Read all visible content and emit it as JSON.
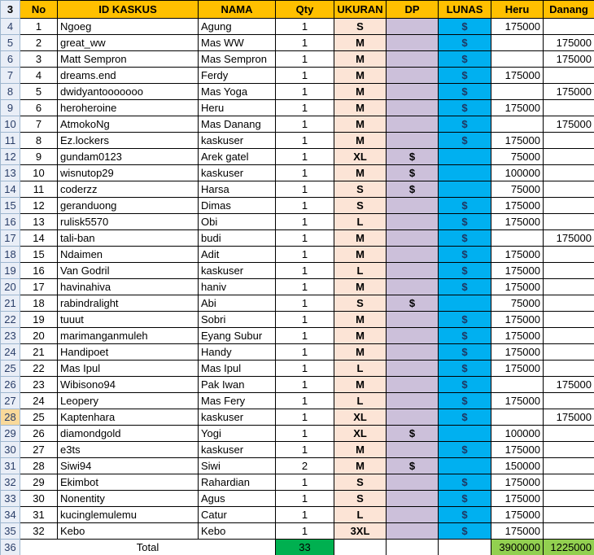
{
  "header_row_number": "3",
  "headers": [
    "No",
    "ID KASKUS",
    "NAMA",
    "Qty",
    "UKURAN",
    "DP",
    "LUNAS",
    "Heru",
    "Danang"
  ],
  "selected_row": "28",
  "dollar": "$",
  "rows": [
    [
      "4",
      "1",
      "Ngoeg",
      "Agung",
      "1",
      "S",
      "",
      "$",
      "175000",
      ""
    ],
    [
      "5",
      "2",
      "great_ww",
      "Mas WW",
      "1",
      "M",
      "",
      "$",
      "",
      "175000"
    ],
    [
      "6",
      "3",
      "Matt Sempron",
      "Mas Sempron",
      "1",
      "M",
      "",
      "$",
      "",
      "175000"
    ],
    [
      "7",
      "4",
      "dreams.end",
      "Ferdy",
      "1",
      "M",
      "",
      "$",
      "175000",
      ""
    ],
    [
      "8",
      "5",
      "dwidyantooooooo",
      "Mas Yoga",
      "1",
      "M",
      "",
      "$",
      "",
      "175000"
    ],
    [
      "9",
      "6",
      "heroheroine",
      "Heru",
      "1",
      "M",
      "",
      "$",
      "175000",
      ""
    ],
    [
      "10",
      "7",
      "AtmokoNg",
      "Mas Danang",
      "1",
      "M",
      "",
      "$",
      "",
      "175000"
    ],
    [
      "11",
      "8",
      "Ez.lockers",
      "kaskuser",
      "1",
      "M",
      "",
      "$",
      "175000",
      ""
    ],
    [
      "12",
      "9",
      "gundam0123",
      "Arek gatel",
      "1",
      "XL",
      "$",
      "",
      "75000",
      ""
    ],
    [
      "13",
      "10",
      "wisnutop29",
      "kaskuser",
      "1",
      "M",
      "$",
      "",
      "100000",
      ""
    ],
    [
      "14",
      "11",
      "coderzz",
      "Harsa",
      "1",
      "S",
      "$",
      "",
      "75000",
      ""
    ],
    [
      "15",
      "12",
      "geranduong",
      "Dimas",
      "1",
      "S",
      "",
      "$",
      "175000",
      ""
    ],
    [
      "16",
      "13",
      "rulisk5570",
      "Obi",
      "1",
      "L",
      "",
      "$",
      "175000",
      ""
    ],
    [
      "17",
      "14",
      "tali-ban",
      "budi",
      "1",
      "M",
      "",
      "$",
      "",
      "175000"
    ],
    [
      "18",
      "15",
      "Ndaimen",
      "Adit",
      "1",
      "M",
      "",
      "$",
      "175000",
      ""
    ],
    [
      "19",
      "16",
      "Van Godril",
      "kaskuser",
      "1",
      "L",
      "",
      "$",
      "175000",
      ""
    ],
    [
      "20",
      "17",
      "havinahiva",
      "haniv",
      "1",
      "M",
      "",
      "$",
      "175000",
      ""
    ],
    [
      "21",
      "18",
      "rabindralight",
      "Abi",
      "1",
      "S",
      "$",
      "",
      "75000",
      ""
    ],
    [
      "22",
      "19",
      "tuuut",
      "Sobri",
      "1",
      "M",
      "",
      "$",
      "175000",
      ""
    ],
    [
      "23",
      "20",
      "marimanganmuleh",
      "Eyang Subur",
      "1",
      "M",
      "",
      "$",
      "175000",
      ""
    ],
    [
      "24",
      "21",
      "Handipoet",
      "Handy",
      "1",
      "M",
      "",
      "$",
      "175000",
      ""
    ],
    [
      "25",
      "22",
      "Mas Ipul",
      "Mas Ipul",
      "1",
      "L",
      "",
      "$",
      "175000",
      ""
    ],
    [
      "26",
      "23",
      "Wibisono94",
      "Pak Iwan",
      "1",
      "M",
      "",
      "$",
      "",
      "175000"
    ],
    [
      "27",
      "24",
      "Leopery",
      "Mas Fery",
      "1",
      "L",
      "",
      "$",
      "175000",
      ""
    ],
    [
      "28",
      "25",
      "Kaptenhara",
      "kaskuser",
      "1",
      "XL",
      "",
      "$",
      "",
      "175000"
    ],
    [
      "29",
      "26",
      "diamondgold",
      "Yogi",
      "1",
      "XL",
      "$",
      "",
      "100000",
      ""
    ],
    [
      "30",
      "27",
      "e3ts",
      "kaskuser",
      "1",
      "M",
      "",
      "$",
      "175000",
      ""
    ],
    [
      "31",
      "28",
      "Siwi94",
      "Siwi",
      "2",
      "M",
      "$",
      "",
      "150000",
      ""
    ],
    [
      "32",
      "29",
      "Ekimbot",
      "Rahardian",
      "1",
      "S",
      "",
      "$",
      "175000",
      ""
    ],
    [
      "33",
      "30",
      "Nonentity",
      "Agus",
      "1",
      "S",
      "",
      "$",
      "175000",
      ""
    ],
    [
      "34",
      "31",
      "kucinglemulemu",
      "Catur",
      "1",
      "L",
      "",
      "$",
      "175000",
      ""
    ],
    [
      "35",
      "32",
      "Kebo",
      "Kebo",
      "1",
      "3XL",
      "",
      "$",
      "175000",
      ""
    ]
  ],
  "total": {
    "row_number": "36",
    "label": "Total",
    "qty": "33",
    "heru": "3900000",
    "danang": "1225000"
  },
  "colors": {
    "header": "#ffc000",
    "ukuran": "#fce4d6",
    "dp": "#ccc0da",
    "lunas": "#00b0f0",
    "total_qty": "#00b050",
    "total_amount": "#92d050"
  }
}
